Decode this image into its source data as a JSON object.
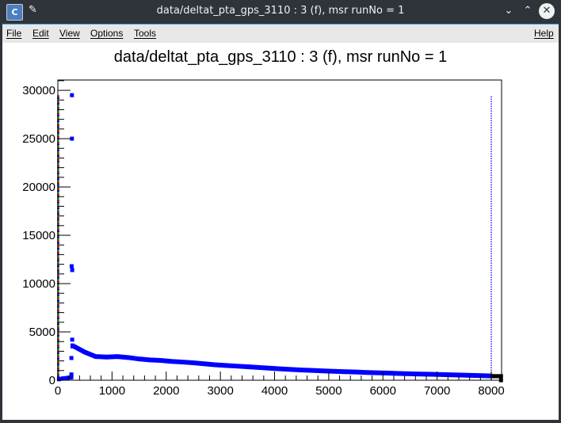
{
  "window": {
    "title": "data/deltat_pta_gps_3110 : 3 (f), msr runNo = 1"
  },
  "menu": {
    "file": "File",
    "edit": "Edit",
    "view": "View",
    "options": "Options",
    "tools": "Tools",
    "help": "Help"
  },
  "chart_data": {
    "type": "scatter",
    "title": "data/deltat_pta_gps_3110 : 3 (f), msr runNo = 1",
    "xlabel": "",
    "ylabel": "",
    "xlim": [
      0,
      8190
    ],
    "ylim": [
      0,
      31070
    ],
    "xticks": [
      0,
      1000,
      2000,
      3000,
      4000,
      5000,
      6000,
      7000,
      8000
    ],
    "yticks": [
      0,
      5000,
      10000,
      15000,
      20000,
      25000,
      30000
    ],
    "grid": false,
    "colors": {
      "main": "#0000ff",
      "overflow": "#000000",
      "edge": [
        "#ff0000",
        "#00dd00",
        "#0000ff"
      ]
    },
    "series": [
      {
        "color": "#0000ff",
        "x": [
          20,
          60,
          100,
          140,
          180,
          220,
          250,
          250,
          250,
          255,
          260,
          260,
          265,
          265,
          270,
          270
        ],
        "y": [
          100,
          150,
          200,
          220,
          250,
          280,
          600,
          300,
          2300,
          11800,
          29500,
          25000,
          11400,
          4200,
          3600,
          3500
        ]
      },
      {
        "color": "#0000ff",
        "x": [
          300,
          500,
          700,
          900,
          1100,
          1300,
          1500,
          1700,
          1900,
          2100,
          2300,
          2500,
          2700,
          2900,
          3100,
          3300,
          3500,
          3700,
          3900,
          4100,
          4300,
          4500,
          4700,
          4900,
          5100,
          5300,
          5500,
          5700,
          5900,
          6100,
          6300,
          6500,
          6700,
          6900,
          7100,
          7300,
          7500,
          7700,
          7900,
          8000
        ],
        "y": [
          3500,
          2900,
          2450,
          2400,
          2450,
          2350,
          2200,
          2100,
          2050,
          1950,
          1880,
          1800,
          1700,
          1600,
          1530,
          1460,
          1390,
          1320,
          1250,
          1180,
          1120,
          1060,
          1010,
          960,
          920,
          880,
          850,
          800,
          770,
          740,
          700,
          670,
          640,
          610,
          580,
          550,
          520,
          490,
          460,
          440
        ]
      },
      {
        "color": "#000000",
        "x": [
          8020,
          8060,
          8100,
          8140,
          8180,
          8180
        ],
        "y": [
          420,
          420,
          420,
          420,
          420,
          0
        ]
      }
    ],
    "vline": {
      "x": 8000,
      "ymax": 29500,
      "color": "#0000ff",
      "style": "dotted"
    },
    "edge_markers": {
      "x": 0,
      "ymax": 29500
    }
  }
}
